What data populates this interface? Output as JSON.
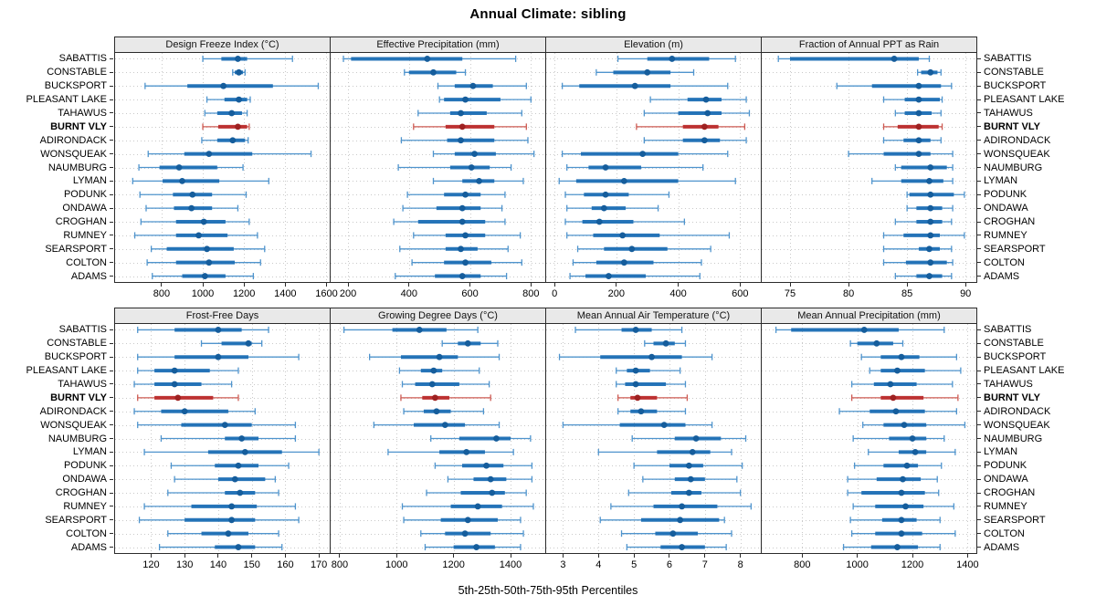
{
  "title": "Annual Climate: sibling",
  "xlabel": "5th-25th-50th-75th-95th Percentiles",
  "highlight_site": "BURNT VLY",
  "sites": [
    "SABATTIS",
    "CONSTABLE",
    "BUCKSPORT",
    "PLEASANT LAKE",
    "TAHAWUS",
    "BURNT VLY",
    "ADIRONDACK",
    "WONSQUEAK",
    "NAUMBURG",
    "LYMAN",
    "PODUNK",
    "ONDAWA",
    "CROGHAN",
    "RUMNEY",
    "SEARSPORT",
    "COLTON",
    "ADAMS"
  ],
  "colors": {
    "blue_line": "#4f94cd",
    "blue_bar": "#1d6fb5",
    "blue_dot": "#155d9c",
    "red_line": "#cd5a52",
    "red_bar": "#bb2b2b",
    "red_dot": "#9e2121",
    "grid": "#c9c9c9",
    "border": "#2b2b2b",
    "strip_bg": "#e9e9e9"
  },
  "chart_data": {
    "type": "dotplot",
    "subtype": "trellis-percentile-intervals",
    "percentiles": [
      5,
      25,
      50,
      75,
      95
    ],
    "legend": "none",
    "grid": "dotted",
    "layout": {
      "rows": 2,
      "cols": 4
    },
    "panels": [
      {
        "title": "Design Freeze Index (°C)",
        "row": 0,
        "col": 0,
        "xlim": [
          570,
          1620
        ],
        "ticks": [
          800,
          1000,
          1200,
          1400,
          1600
        ],
        "values": [
          [
            1000,
            1090,
            1170,
            1215,
            1435
          ],
          [
            1145,
            1155,
            1175,
            1195,
            1205
          ],
          [
            720,
            925,
            1100,
            1340,
            1560
          ],
          [
            1020,
            1105,
            1175,
            1215,
            1230
          ],
          [
            1010,
            1070,
            1140,
            1190,
            1215
          ],
          [
            1000,
            1075,
            1170,
            1215,
            1225
          ],
          [
            995,
            1070,
            1145,
            1205,
            1220
          ],
          [
            735,
            910,
            1030,
            1240,
            1525
          ],
          [
            690,
            790,
            885,
            1070,
            1195
          ],
          [
            660,
            805,
            900,
            1080,
            1320
          ],
          [
            695,
            855,
            950,
            1045,
            1210
          ],
          [
            725,
            860,
            945,
            1045,
            1170
          ],
          [
            700,
            870,
            1005,
            1110,
            1225
          ],
          [
            670,
            870,
            980,
            1120,
            1265
          ],
          [
            750,
            825,
            1020,
            1150,
            1300
          ],
          [
            730,
            870,
            1030,
            1155,
            1280
          ],
          [
            755,
            900,
            1010,
            1110,
            1245
          ]
        ]
      },
      {
        "title": "Effective Precipitation (mm)",
        "row": 0,
        "col": 1,
        "xlim": [
          140,
          850
        ],
        "ticks": [
          200,
          400,
          600,
          800
        ],
        "values": [
          [
            185,
            210,
            460,
            575,
            750
          ],
          [
            385,
            400,
            480,
            555,
            585
          ],
          [
            495,
            550,
            610,
            675,
            785
          ],
          [
            500,
            515,
            585,
            700,
            800
          ],
          [
            430,
            535,
            570,
            655,
            770
          ],
          [
            415,
            520,
            575,
            680,
            785
          ],
          [
            375,
            525,
            570,
            680,
            790
          ],
          [
            480,
            550,
            615,
            685,
            810
          ],
          [
            365,
            535,
            605,
            665,
            735
          ],
          [
            480,
            575,
            630,
            680,
            775
          ],
          [
            395,
            515,
            585,
            635,
            715
          ],
          [
            380,
            490,
            575,
            635,
            705
          ],
          [
            350,
            430,
            575,
            650,
            715
          ],
          [
            415,
            520,
            585,
            650,
            765
          ],
          [
            370,
            520,
            570,
            625,
            725
          ],
          [
            410,
            515,
            585,
            670,
            770
          ],
          [
            355,
            485,
            575,
            635,
            720
          ]
        ]
      },
      {
        "title": "Elevation (m)",
        "row": 0,
        "col": 2,
        "xlim": [
          -30,
          670
        ],
        "ticks": [
          0,
          200,
          400,
          600
        ],
        "values": [
          [
            205,
            300,
            380,
            500,
            585
          ],
          [
            135,
            190,
            300,
            375,
            450
          ],
          [
            25,
            80,
            260,
            375,
            560
          ],
          [
            310,
            430,
            490,
            540,
            620
          ],
          [
            290,
            400,
            495,
            540,
            630
          ],
          [
            265,
            415,
            485,
            530,
            615
          ],
          [
            290,
            415,
            485,
            535,
            620
          ],
          [
            25,
            85,
            285,
            400,
            560
          ],
          [
            40,
            110,
            165,
            280,
            480
          ],
          [
            15,
            70,
            225,
            400,
            585
          ],
          [
            35,
            95,
            165,
            240,
            370
          ],
          [
            40,
            120,
            160,
            230,
            335
          ],
          [
            35,
            90,
            145,
            255,
            420
          ],
          [
            40,
            125,
            220,
            340,
            565
          ],
          [
            75,
            160,
            250,
            365,
            505
          ],
          [
            60,
            135,
            225,
            320,
            475
          ],
          [
            50,
            100,
            175,
            295,
            470
          ]
        ]
      },
      {
        "title": "Fraction of Annual PPT as Rain",
        "row": 0,
        "col": 3,
        "xlim": [
          72.5,
          91
        ],
        "ticks": [
          75,
          80,
          85,
          90
        ],
        "values": [
          [
            74,
            75,
            83.9,
            86,
            86.9
          ],
          [
            85.9,
            86.2,
            87,
            87.6,
            87.9
          ],
          [
            79,
            82,
            86,
            87.9,
            88.8
          ],
          [
            83,
            84.8,
            86,
            87.8,
            88
          ],
          [
            84,
            84.8,
            86,
            87.1,
            87.9
          ],
          [
            83,
            84.2,
            86,
            87.7,
            88
          ],
          [
            83,
            84.7,
            86,
            87,
            87.9
          ],
          [
            80,
            83,
            86,
            87,
            88.9
          ],
          [
            84,
            84.5,
            87,
            88.4,
            88.9
          ],
          [
            82,
            84.5,
            86.9,
            88.1,
            88.9
          ],
          [
            85,
            85.2,
            87,
            89,
            89.9
          ],
          [
            85,
            85.8,
            87,
            88,
            88.9
          ],
          [
            84,
            85.8,
            87,
            88,
            88.8
          ],
          [
            83,
            84.7,
            87,
            87.8,
            89.9
          ],
          [
            83,
            86,
            86.9,
            87.8,
            88.8
          ],
          [
            83,
            84.9,
            87,
            88.4,
            88.9
          ],
          [
            84,
            85.8,
            86.9,
            88,
            88.8
          ]
        ]
      },
      {
        "title": "Frost-Free Days",
        "row": 1,
        "col": 0,
        "xlim": [
          109,
          173.5
        ],
        "ticks": [
          120,
          130,
          140,
          150,
          160,
          170
        ],
        "values": [
          [
            116,
            127,
            140,
            147,
            155
          ],
          [
            135,
            141,
            149,
            150,
            153
          ],
          [
            116,
            127,
            140,
            149,
            164
          ],
          [
            116,
            121,
            127,
            137.5,
            146
          ],
          [
            115,
            121,
            127,
            135,
            144
          ],
          [
            116,
            121,
            128,
            138.5,
            146
          ],
          [
            115,
            123,
            130,
            143,
            151
          ],
          [
            116,
            129,
            142,
            150,
            163
          ],
          [
            123,
            142,
            147,
            152,
            163
          ],
          [
            118,
            137,
            148,
            159,
            170
          ],
          [
            126,
            139,
            146,
            152,
            161
          ],
          [
            127,
            140,
            145,
            154,
            157
          ],
          [
            125,
            142,
            146.5,
            151,
            158
          ],
          [
            118,
            132,
            144,
            151.5,
            163
          ],
          [
            116.5,
            130,
            144,
            151,
            164
          ],
          [
            125,
            135,
            143,
            149,
            158
          ],
          [
            122.5,
            139,
            146,
            151,
            159
          ]
        ]
      },
      {
        "title": "Growing Degree Days (°C)",
        "row": 1,
        "col": 1,
        "xlim": [
          765,
          1525
        ],
        "ticks": [
          800,
          1000,
          1200,
          1400
        ],
        "values": [
          [
            815,
            985,
            1080,
            1175,
            1285
          ],
          [
            1160,
            1215,
            1250,
            1295,
            1355
          ],
          [
            905,
            1015,
            1150,
            1215,
            1360
          ],
          [
            1010,
            1085,
            1130,
            1160,
            1290
          ],
          [
            1020,
            1065,
            1125,
            1220,
            1325
          ],
          [
            1015,
            1090,
            1135,
            1185,
            1330
          ],
          [
            1025,
            1095,
            1140,
            1190,
            1305
          ],
          [
            920,
            1060,
            1170,
            1240,
            1360
          ],
          [
            1120,
            1220,
            1350,
            1400,
            1470
          ],
          [
            970,
            1150,
            1245,
            1310,
            1410
          ],
          [
            1135,
            1230,
            1315,
            1375,
            1475
          ],
          [
            1180,
            1270,
            1330,
            1385,
            1475
          ],
          [
            1105,
            1225,
            1335,
            1380,
            1455
          ],
          [
            1020,
            1190,
            1285,
            1370,
            1480
          ],
          [
            1025,
            1155,
            1250,
            1355,
            1435
          ],
          [
            1085,
            1170,
            1240,
            1330,
            1445
          ],
          [
            1100,
            1200,
            1280,
            1345,
            1435
          ]
        ]
      },
      {
        "title": "Mean Annual Air Temperature (°C)",
        "row": 1,
        "col": 2,
        "xlim": [
          2.5,
          8.6
        ],
        "ticks": [
          3,
          4,
          5,
          6,
          7,
          8
        ],
        "values": [
          [
            3.35,
            4.65,
            5.05,
            5.5,
            6.35
          ],
          [
            5.3,
            5.55,
            5.9,
            6.15,
            6.45
          ],
          [
            2.9,
            4.05,
            5.5,
            6.35,
            7.2
          ],
          [
            4.5,
            4.8,
            5.05,
            5.45,
            6.3
          ],
          [
            4.5,
            4.75,
            5.05,
            5.9,
            6.45
          ],
          [
            4.55,
            4.9,
            5.1,
            5.65,
            6.5
          ],
          [
            4.55,
            4.9,
            5.2,
            5.65,
            6.45
          ],
          [
            3,
            4.6,
            5.85,
            6.45,
            7.2
          ],
          [
            4.95,
            6.15,
            6.75,
            7.45,
            8.15
          ],
          [
            4,
            5.65,
            6.65,
            7.15,
            7.75
          ],
          [
            5,
            6,
            6.55,
            6.95,
            8.05
          ],
          [
            5.25,
            6.15,
            6.6,
            7,
            7.9
          ],
          [
            4.85,
            6.05,
            6.55,
            6.9,
            8
          ],
          [
            4.35,
            5.55,
            6.35,
            7.35,
            8.3
          ],
          [
            4.05,
            5.2,
            6.3,
            7.4,
            7.55
          ],
          [
            4.65,
            5.6,
            6.1,
            6.8,
            7.75
          ],
          [
            4.8,
            5.75,
            6.35,
            7,
            7.6
          ]
        ]
      },
      {
        "title": "Mean Annual Precipitation (mm)",
        "row": 1,
        "col": 3,
        "xlim": [
          650,
          1435
        ],
        "ticks": [
          800,
          1000,
          1200,
          1400
        ],
        "values": [
          [
            705,
            760,
            1025,
            1150,
            1315
          ],
          [
            975,
            1000,
            1070,
            1130,
            1165
          ],
          [
            1015,
            1085,
            1160,
            1225,
            1360
          ],
          [
            1045,
            1085,
            1145,
            1245,
            1375
          ],
          [
            980,
            1060,
            1120,
            1215,
            1345
          ],
          [
            980,
            1085,
            1130,
            1240,
            1365
          ],
          [
            935,
            1045,
            1140,
            1245,
            1360
          ],
          [
            1020,
            1095,
            1170,
            1250,
            1390
          ],
          [
            985,
            1115,
            1200,
            1250,
            1315
          ],
          [
            1040,
            1150,
            1210,
            1250,
            1355
          ],
          [
            990,
            1095,
            1180,
            1220,
            1305
          ],
          [
            965,
            1070,
            1165,
            1230,
            1290
          ],
          [
            965,
            1015,
            1160,
            1245,
            1295
          ],
          [
            985,
            1065,
            1175,
            1240,
            1350
          ],
          [
            975,
            1090,
            1160,
            1215,
            1300
          ],
          [
            980,
            1065,
            1160,
            1235,
            1355
          ],
          [
            950,
            1050,
            1145,
            1220,
            1300
          ]
        ]
      }
    ]
  }
}
